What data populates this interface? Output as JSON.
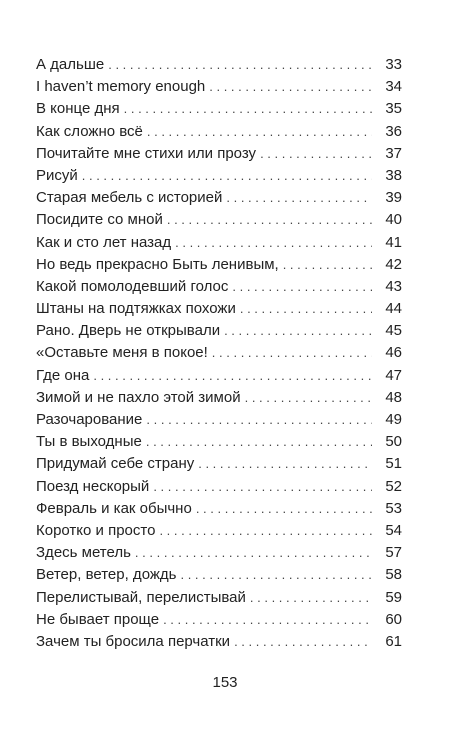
{
  "toc": {
    "entries": [
      {
        "title": "А дальше",
        "page": "33"
      },
      {
        "title": "I haven’t memory enough",
        "page": "34"
      },
      {
        "title": "В конце дня",
        "page": "35"
      },
      {
        "title": "Как сложно всё",
        "page": "36"
      },
      {
        "title": "Почитайте мне стихи или прозу",
        "page": "37"
      },
      {
        "title": "Рисуй",
        "page": "38"
      },
      {
        "title": "Старая мебель с историей",
        "page": "39"
      },
      {
        "title": "Посидите со мной",
        "page": "40"
      },
      {
        "title": "Как и сто лет назад",
        "page": "41"
      },
      {
        "title": "Но ведь прекрасно Быть ленивым,",
        "page": "42"
      },
      {
        "title": "Какой помолодевший голос",
        "page": "43"
      },
      {
        "title": "Штаны на подтяжках похожи",
        "page": "44"
      },
      {
        "title": "Рано. Дверь не открывали",
        "page": "45"
      },
      {
        "title": "«Оставьте меня в покое!",
        "page": "46"
      },
      {
        "title": "Где она",
        "page": "47"
      },
      {
        "title": "Зимой и не пахло этой зимой",
        "page": "48"
      },
      {
        "title": "Разочарование",
        "page": "49"
      },
      {
        "title": "Ты в выходные",
        "page": "50"
      },
      {
        "title": "Придумай себе страну",
        "page": "51"
      },
      {
        "title": "Поезд нескорый",
        "page": "52"
      },
      {
        "title": "Февраль и как обычно",
        "page": "53"
      },
      {
        "title": "Коротко и просто",
        "page": "54"
      },
      {
        "title": "Здесь метель",
        "page": "57"
      },
      {
        "title": "Ветер, ветер, дождь",
        "page": "58"
      },
      {
        "title": "Перелистывай, перелистывай",
        "page": "59"
      },
      {
        "title": "Не бывает проще",
        "page": "60"
      },
      {
        "title": "Зачем ты бросила перчатки",
        "page": "61"
      }
    ]
  },
  "footer": {
    "page_number": "153"
  }
}
